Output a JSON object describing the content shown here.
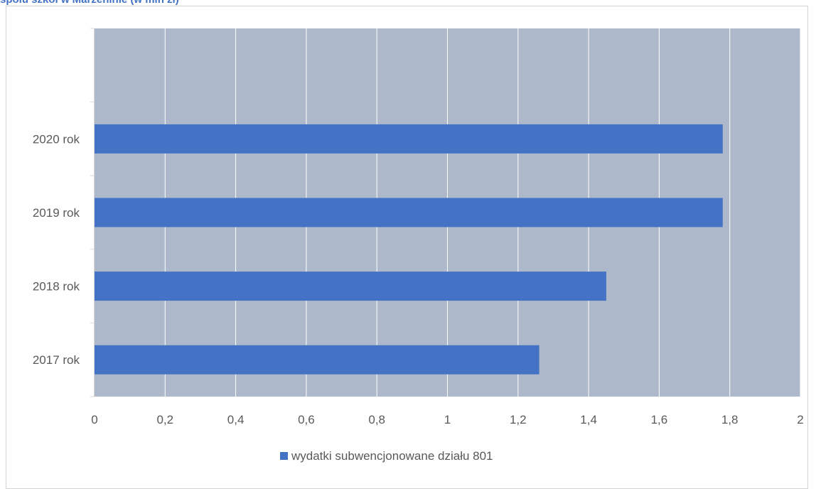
{
  "title": "społu szkół w Marzeninie (w mln zł)",
  "chart_data": {
    "type": "bar",
    "orientation": "horizontal",
    "categories": [
      "2017 rok",
      "2018 rok",
      "2019 rok",
      "2020 rok"
    ],
    "series": [
      {
        "name": "wydatki subwencjonowane działu 801",
        "values": [
          1.26,
          1.45,
          1.78,
          1.78
        ]
      }
    ],
    "xlim": [
      0,
      2
    ],
    "xticks": [
      "0",
      "0,2",
      "0,4",
      "0,6",
      "0,8",
      "1",
      "1,2",
      "1,4",
      "1,6",
      "1,8",
      "2"
    ],
    "grid": true,
    "legend": "bottom",
    "colors": {
      "bar": "#4472c4",
      "plot_bg": "#adb9ca",
      "grid": "#ffffff"
    }
  }
}
